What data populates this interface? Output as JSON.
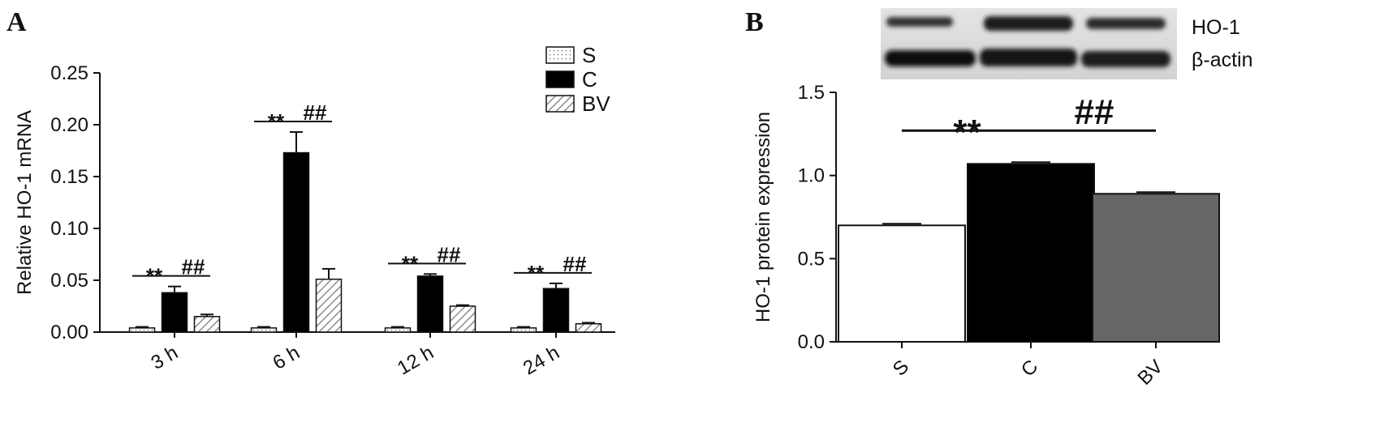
{
  "panels": {
    "a": {
      "letter": "A"
    },
    "b": {
      "letter": "B"
    }
  },
  "blot": {
    "labels": [
      "HO-1",
      "β-actin"
    ]
  },
  "colors": {
    "S": "#ffffff",
    "C": "#000000",
    "BV_panelA": "hatched-gray",
    "BV_panelB": "#666666"
  },
  "chart_data": [
    {
      "type": "bar",
      "panel": "A",
      "title": "",
      "xlabel": "",
      "ylabel": "Relative HO-1 mRNA",
      "ylim": [
        0,
        0.25
      ],
      "yticks": [
        "0.00",
        "0.05",
        "0.10",
        "0.15",
        "0.20",
        "0.25"
      ],
      "categories": [
        "3 h",
        "6 h",
        "12 h",
        "24 h"
      ],
      "series": [
        {
          "name": "S",
          "pattern": "dotted",
          "values": [
            0.004,
            0.004,
            0.004,
            0.004
          ],
          "errors": [
            0.001,
            0.001,
            0.001,
            0.001
          ]
        },
        {
          "name": "C",
          "pattern": "solid-black",
          "values": [
            0.038,
            0.173,
            0.054,
            0.042
          ],
          "errors": [
            0.006,
            0.02,
            0.002,
            0.005
          ]
        },
        {
          "name": "BV",
          "pattern": "hatched",
          "values": [
            0.015,
            0.051,
            0.025,
            0.008
          ],
          "errors": [
            0.002,
            0.01,
            0.001,
            0.001
          ]
        }
      ],
      "significance": [
        {
          "category": "3 h",
          "labels": [
            "**",
            "##"
          ]
        },
        {
          "category": "6 h",
          "labels": [
            "**",
            "##"
          ]
        },
        {
          "category": "12 h",
          "labels": [
            "**",
            "##"
          ]
        },
        {
          "category": "24 h",
          "labels": [
            "**",
            "##"
          ]
        }
      ],
      "legend": [
        "S",
        "C",
        "BV"
      ],
      "legend_position": "top-right",
      "grid": false
    },
    {
      "type": "bar",
      "panel": "B",
      "title": "",
      "xlabel": "",
      "ylabel": "HO-1 protein expression",
      "ylim": [
        0,
        1.5
      ],
      "yticks": [
        "0.0",
        "0.5",
        "1.0",
        "1.5"
      ],
      "categories": [
        "S",
        "C",
        "BV"
      ],
      "values": [
        0.7,
        1.07,
        0.89
      ],
      "errors": [
        0.01,
        0.01,
        0.01
      ],
      "significance": [
        {
          "between": [
            "S",
            "C"
          ],
          "label": "**"
        },
        {
          "between": [
            "C",
            "BV"
          ],
          "label": "##"
        }
      ],
      "grid": false
    }
  ]
}
